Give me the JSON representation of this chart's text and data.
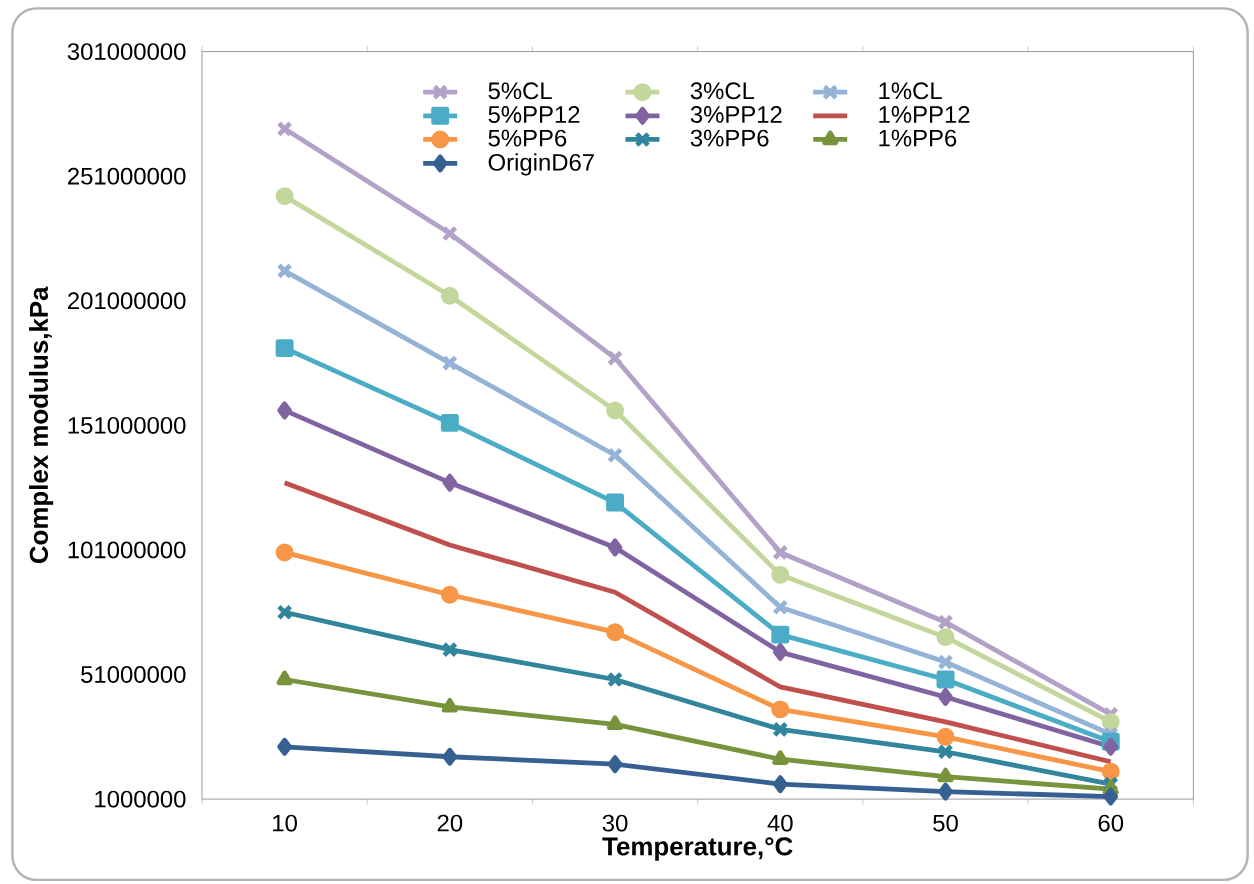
{
  "chart_data": {
    "type": "line",
    "xlabel": "Temperature,°C",
    "ylabel": "Complex modulus,kPa",
    "categories": [
      "10",
      "20",
      "30",
      "40",
      "50",
      "60"
    ],
    "ylim": [
      1000000,
      301000000
    ],
    "yticks": [
      1000000,
      51000000,
      101000000,
      151000000,
      201000000,
      251000000,
      301000000
    ],
    "grid": false,
    "legend": "top",
    "line_style": "solid",
    "series": [
      {
        "name": "5%CL",
        "color": "#b3a2c7",
        "marker": "cross",
        "values": [
          270000000,
          228000000,
          178000000,
          100000000,
          72000000,
          35000000
        ]
      },
      {
        "name": "3%CL",
        "color": "#c3d69b",
        "marker": "circle",
        "values": [
          243000000,
          203000000,
          157000000,
          91000000,
          66000000,
          32000000
        ]
      },
      {
        "name": "1%CL",
        "color": "#95b3d7",
        "marker": "cross",
        "values": [
          213000000,
          176000000,
          139000000,
          78000000,
          56000000,
          27000000
        ]
      },
      {
        "name": "5%PP12",
        "color": "#4bacc6",
        "marker": "square",
        "values": [
          182000000,
          152000000,
          120000000,
          67000000,
          49000000,
          24000000
        ]
      },
      {
        "name": "3%PP12",
        "color": "#8064a2",
        "marker": "diamond",
        "values": [
          157000000,
          128000000,
          102000000,
          60000000,
          42000000,
          22000000
        ]
      },
      {
        "name": "1%PP12",
        "color": "#c0504d",
        "marker": "none",
        "values": [
          128000000,
          103000000,
          84000000,
          46000000,
          32000000,
          16000000
        ]
      },
      {
        "name": "5%PP6",
        "color": "#f79646",
        "marker": "circle",
        "values": [
          100000000,
          83000000,
          68000000,
          37000000,
          26000000,
          12000000
        ]
      },
      {
        "name": "3%PP6",
        "color": "#31859c",
        "marker": "cross",
        "values": [
          76000000,
          61000000,
          49000000,
          29000000,
          20000000,
          7000000
        ]
      },
      {
        "name": "1%PP6",
        "color": "#77933c",
        "marker": "triangle",
        "values": [
          49000000,
          38000000,
          31000000,
          17000000,
          10000000,
          5000000
        ]
      },
      {
        "name": "OriginD67",
        "color": "#376092",
        "marker": "diamond",
        "values": [
          22000000,
          18000000,
          15000000,
          7000000,
          4000000,
          2000000
        ]
      }
    ]
  }
}
